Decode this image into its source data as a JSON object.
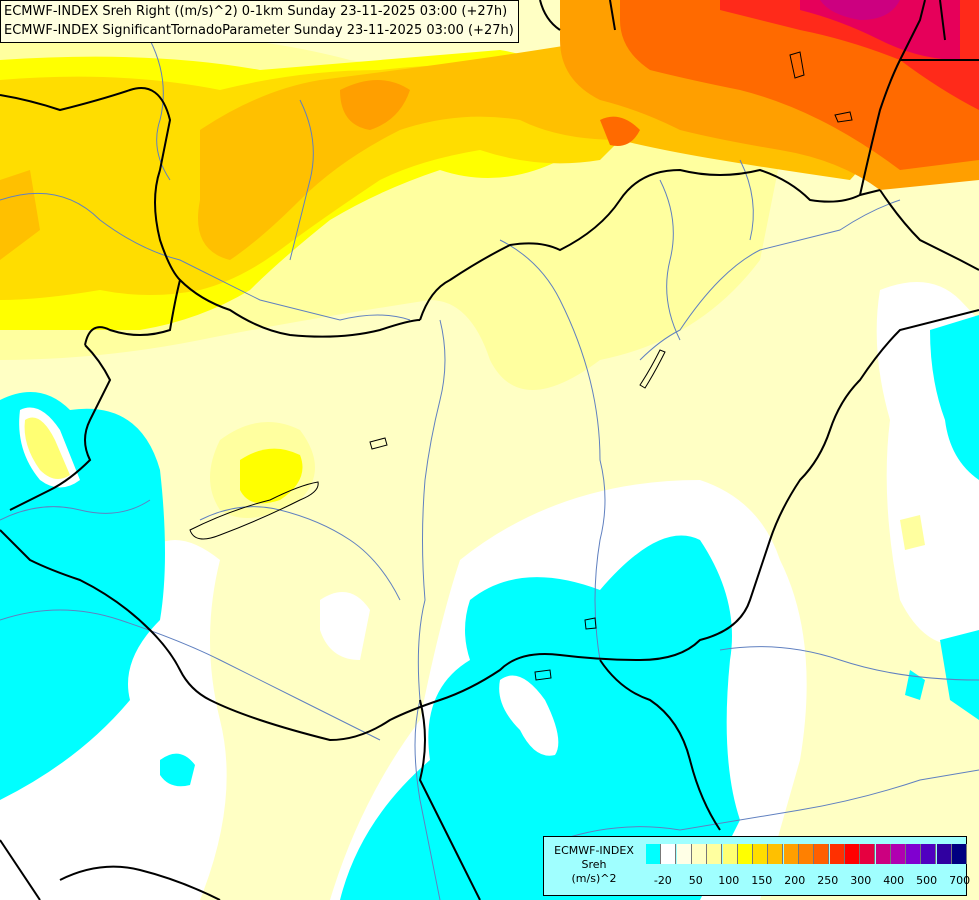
{
  "titles": {
    "line1": "ECMWF-INDEX Sreh Right ((m/s)^2) 0-1km Sunday 23-11-2025 03:00 (+27h)",
    "line2": "ECMWF-INDEX SignificantTornadoParameter Sunday 23-11-2025 03:00 (+27h)"
  },
  "legend": {
    "line1": "ECMWF-INDEX",
    "line2": "Sreh",
    "line3": "(m/s)^2",
    "colors": [
      "#00ffff",
      "#ffffff",
      "#ffffe6",
      "#ffffc4",
      "#ffff9f",
      "#ffff73",
      "#ffff00",
      "#ffdd00",
      "#ffc000",
      "#ff9f00",
      "#ff8000",
      "#ff5f00",
      "#ff3000",
      "#ff0000",
      "#e60040",
      "#cc0080",
      "#b000b0",
      "#8000d0",
      "#5000c0",
      "#3000a0",
      "#000080"
    ],
    "ticks": [
      "-20",
      "50",
      "100",
      "150",
      "200",
      "250",
      "300",
      "400",
      "500",
      "700"
    ]
  },
  "colors": {
    "cyan": "#00ffff",
    "white": "#ffffff",
    "pale_yellow": "#ffffc4",
    "light_yellow": "#ffff9f",
    "yellow": "#ffff00",
    "amber": "#ffdd00",
    "orange": "#ffc000",
    "dark_orange": "#ff8000",
    "red_orange": "#ff5f00",
    "red": "#ff1a1a",
    "magenta": "#e60060",
    "border": "#000000",
    "river": "#6080c0"
  }
}
